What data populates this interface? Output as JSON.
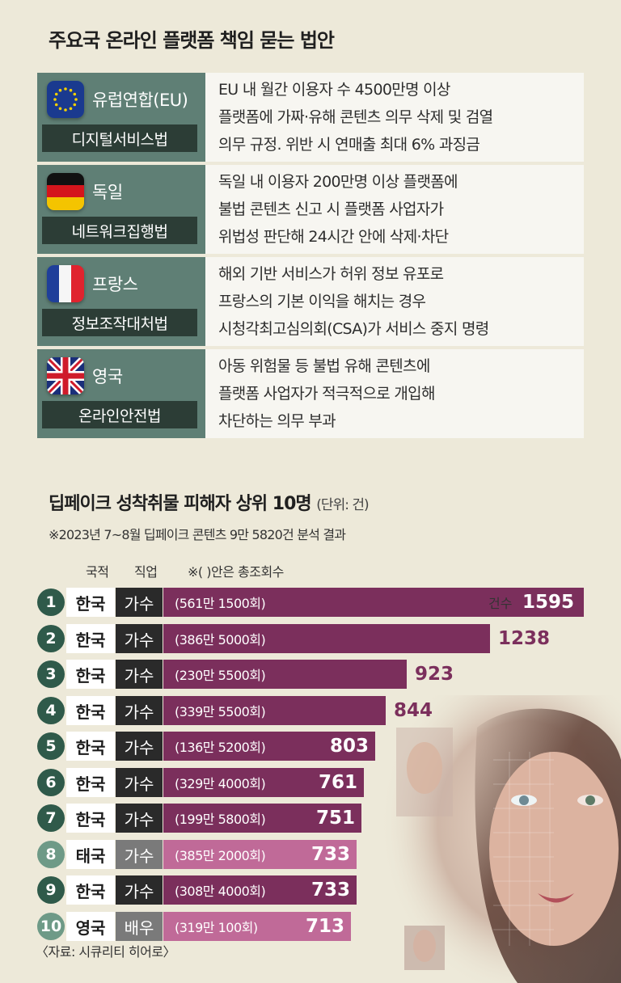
{
  "section1": {
    "title": "주요국 온라인 플랫폼 책임 묻는 법안",
    "laws": [
      {
        "country": "유럽연합(EU)",
        "flag": "eu-flag-icon",
        "law": "디지털서비스법",
        "lines": [
          "EU 내 월간 이용자 수 4500만명 이상",
          "플랫폼에 가짜·유해 콘텐츠 의무 삭제 및 검열",
          "의무 규정. 위반 시 연매출 최대 6% 과징금"
        ]
      },
      {
        "country": "독일",
        "flag": "germany-flag-icon",
        "law": "네트워크집행법",
        "lines": [
          "독일 내 이용자 200만명 이상 플랫폼에",
          "불법 콘텐츠 신고 시 플랫폼 사업자가",
          "위법성 판단해 24시간 안에 삭제·차단"
        ]
      },
      {
        "country": "프랑스",
        "flag": "france-flag-icon",
        "law": "정보조작대처법",
        "lines": [
          "해외 기반 서비스가 허위 정보 유포로",
          "프랑스의 기본 이익을 해치는 경우",
          "시청각최고심의회(CSA)가 서비스 중지 명령"
        ]
      },
      {
        "country": "영국",
        "flag": "uk-flag-icon",
        "law": "온라인안전법",
        "lines": [
          "아동 위험물 등 불법 유해 콘텐츠에",
          "플랫폼 사업자가 적극적으로 개입해",
          "차단하는 의무 부과"
        ]
      }
    ]
  },
  "section2": {
    "title": "딥페이크 성착취물 피해자 상위 10명",
    "unit": "(단위: 건)",
    "note": "※2023년 7~8월 딥페이크 콘텐츠 9만 5820건 분석 결과",
    "col_nationality": "국적",
    "col_job": "직업",
    "col_views": "※( )안은 총조회수",
    "count_label": "건수",
    "source": "〈자료: 시큐리티 히어로〉"
  },
  "colors": {
    "bar_korea": "#7b2f5c",
    "bar_other": "#c06a98",
    "circle_korea": "#2f5a4a",
    "circle_other": "#6e9a87",
    "job_korea": "#2a2a2a",
    "job_other": "#7a7a7a",
    "value_text": "#7b2f5c"
  },
  "chart_data": {
    "type": "bar",
    "title": "딥페이크 성착취물 피해자 상위 10명",
    "unit": "건",
    "categories": [
      "1",
      "2",
      "3",
      "4",
      "5",
      "6",
      "7",
      "8",
      "9",
      "10"
    ],
    "values": [
      1595,
      1238,
      923,
      844,
      803,
      761,
      751,
      733,
      733,
      713
    ],
    "nationality": [
      "한국",
      "한국",
      "한국",
      "한국",
      "한국",
      "한국",
      "한국",
      "태국",
      "한국",
      "영국"
    ],
    "occupation": [
      "가수",
      "가수",
      "가수",
      "가수",
      "가수",
      "가수",
      "가수",
      "가수",
      "가수",
      "배우"
    ],
    "total_views": [
      "(561만 1500회)",
      "(386만 5000회)",
      "(230만 5500회)",
      "(339만 5500회)",
      "(136만 5200회)",
      "(329만 4000회)",
      "(199만 5800회)",
      "(385만 2000회)",
      "(308만 4000회)",
      "(319만 100회)"
    ],
    "korean": [
      true,
      true,
      true,
      true,
      true,
      true,
      true,
      false,
      true,
      false
    ],
    "orientation": "horizontal"
  }
}
